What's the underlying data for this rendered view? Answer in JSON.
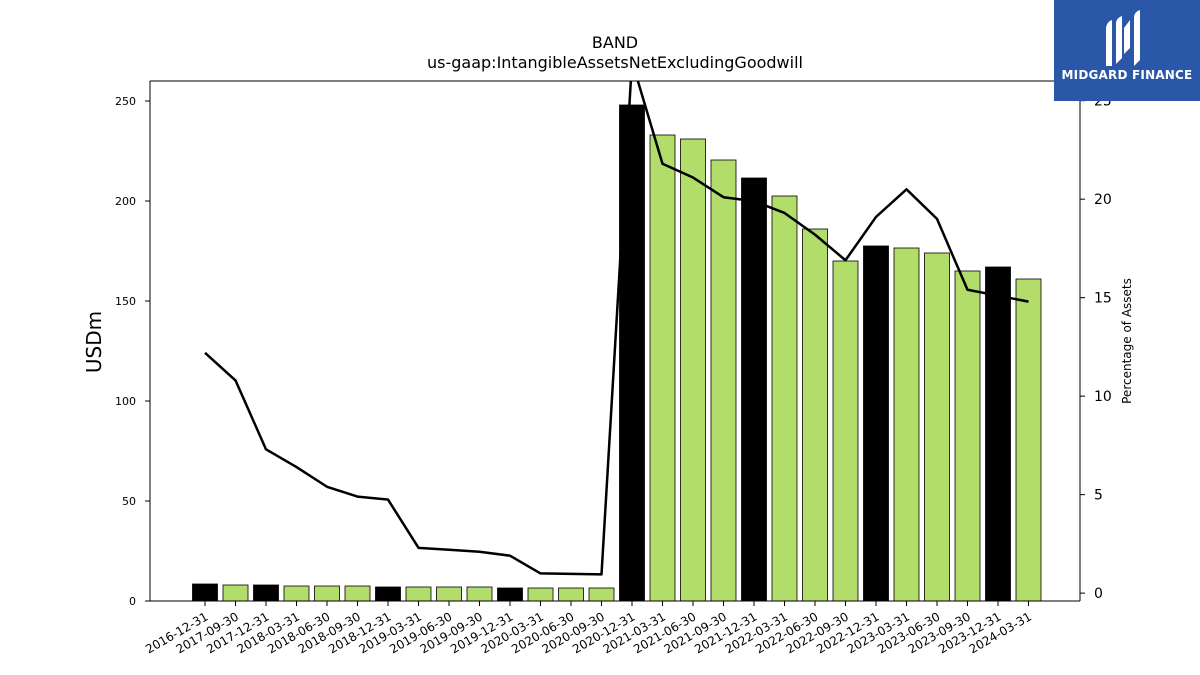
{
  "chart_data": {
    "type": "bar+line",
    "title": "BAND",
    "subtitle": "us-gaap:IntangibleAssetsNetExcludingGoodwill",
    "ylabel": "USDm",
    "y2label": "Percentage of Assets",
    "categories": [
      "2016-12-31",
      "2017-09-30",
      "2017-12-31",
      "2018-03-31",
      "2018-06-30",
      "2018-09-30",
      "2018-12-31",
      "2019-03-31",
      "2019-06-30",
      "2019-09-30",
      "2019-12-31",
      "2020-03-31",
      "2020-06-30",
      "2020-09-30",
      "2020-12-31",
      "2021-03-31",
      "2021-06-30",
      "2021-09-30",
      "2021-12-31",
      "2022-03-31",
      "2022-06-30",
      "2022-09-30",
      "2022-12-31",
      "2023-03-31",
      "2023-06-30",
      "2023-09-30",
      "2023-12-31",
      "2024-03-31"
    ],
    "values": [
      8.5,
      8,
      8,
      7.5,
      7.5,
      7.5,
      7,
      7,
      7,
      7,
      6.5,
      6.5,
      6.5,
      6.5,
      248,
      233,
      231,
      220.5,
      211.5,
      202.5,
      186,
      170,
      177.5,
      176.5,
      174,
      165,
      167,
      161
    ],
    "highlight": [
      true,
      false,
      true,
      false,
      false,
      false,
      true,
      false,
      false,
      false,
      true,
      false,
      false,
      false,
      true,
      false,
      false,
      false,
      true,
      false,
      false,
      false,
      true,
      false,
      false,
      false,
      true,
      false
    ],
    "line_values": [
      12.2,
      10.8,
      7.3,
      6.4,
      5.4,
      4.9,
      4.75,
      2.3,
      2.2,
      2.1,
      1.9,
      1.0,
      0.98,
      0.95,
      27.0,
      21.8,
      21.1,
      20.1,
      19.9,
      19.3,
      18.2,
      16.9,
      19.1,
      20.5,
      19.0,
      15.4,
      15.1,
      14.8
    ],
    "ylim": [
      0,
      260
    ],
    "y2lim": [
      -0.4,
      26.0
    ],
    "yticks": [
      0,
      50,
      100,
      150,
      200,
      250
    ],
    "y2ticks": [
      0,
      5,
      10,
      15,
      20,
      25
    ],
    "colors": {
      "highlight_bar": "#000000",
      "bar": "#b3dd6b",
      "line": "#000000"
    },
    "grid": false,
    "legend": "none"
  },
  "logo": {
    "text": "MIDGARD FINANCE",
    "background": "#2a57a8"
  }
}
